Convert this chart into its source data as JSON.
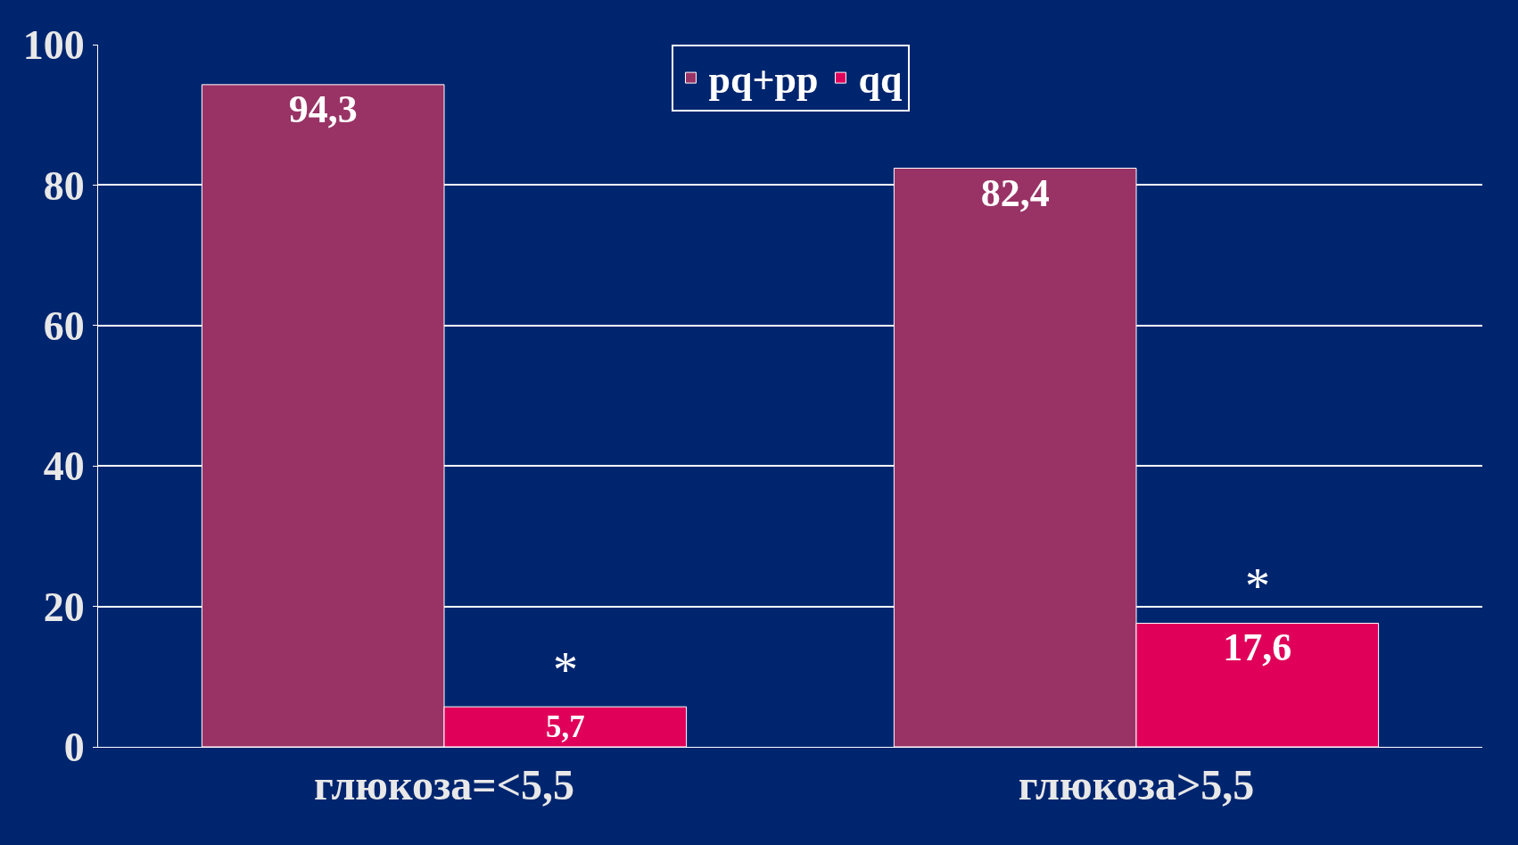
{
  "chart_data": {
    "type": "bar",
    "categories": [
      "глюкоза=<5,5",
      "глюкоза>5,5"
    ],
    "series": [
      {
        "name": "pq+pp",
        "color": "#993366",
        "values": [
          94.3,
          82.4
        ]
      },
      {
        "name": "qq",
        "color": "#e0005a",
        "values": [
          5.7,
          17.6
        ]
      }
    ],
    "ylim": [
      0,
      100
    ],
    "yticks": [
      0,
      20,
      40,
      60,
      80,
      100
    ],
    "grid": "y",
    "legend": "top",
    "value_labels": [
      [
        "94,3",
        "82,4"
      ],
      [
        "5,7",
        "17,6"
      ]
    ],
    "annotations": [
      {
        "text": "*",
        "x": "глюкоза=<5,5",
        "y": 5.7
      },
      {
        "text": "*",
        "x": "глюкоза>5,5",
        "y": 17.6
      }
    ]
  }
}
